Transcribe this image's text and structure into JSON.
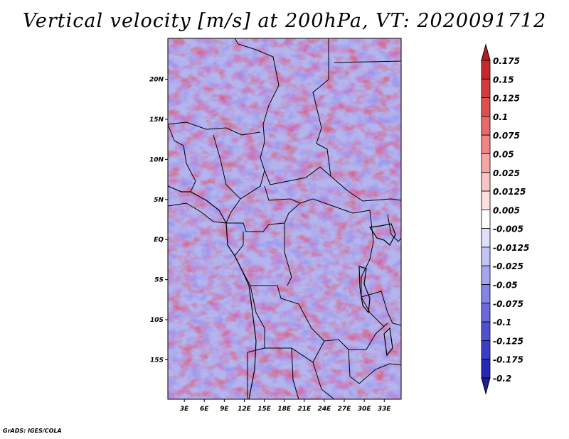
{
  "title": "Vertical velocity [m/s] at 200hPa, VT: 2020091712",
  "credit": "GrADS: IGES/COLA",
  "map": {
    "lon_range": [
      0,
      35
    ],
    "lat_range": [
      -20,
      25
    ],
    "lat_ticks": [
      {
        "value": 20,
        "label": "20N"
      },
      {
        "value": 15,
        "label": "15N"
      },
      {
        "value": 10,
        "label": "10N"
      },
      {
        "value": 5,
        "label": "5N"
      },
      {
        "value": 0,
        "label": "EQ"
      },
      {
        "value": -5,
        "label": "5S"
      },
      {
        "value": -10,
        "label": "10S"
      },
      {
        "value": -15,
        "label": "15S"
      }
    ],
    "lon_ticks": [
      {
        "value": 3,
        "label": "3E"
      },
      {
        "value": 6,
        "label": "6E"
      },
      {
        "value": 9,
        "label": "9E"
      },
      {
        "value": 12,
        "label": "12E"
      },
      {
        "value": 15,
        "label": "15E"
      },
      {
        "value": 18,
        "label": "18E"
      },
      {
        "value": 21,
        "label": "21E"
      },
      {
        "value": 24,
        "label": "24E"
      },
      {
        "value": 27,
        "label": "27E"
      },
      {
        "value": 30,
        "label": "30E"
      },
      {
        "value": 33,
        "label": "33E"
      }
    ]
  },
  "colorbar": {
    "levels": [
      "0.175",
      "0.15",
      "0.125",
      "0.1",
      "0.075",
      "0.05",
      "0.025",
      "0.0125",
      "0.005",
      "-0.005",
      "-0.0125",
      "-0.025",
      "-0.05",
      "-0.075",
      "-0.1",
      "-0.125",
      "-0.175",
      "-0.2"
    ],
    "colors": [
      "#b41e1e",
      "#c8282a",
      "#d23c3c",
      "#dc5050",
      "#e66a6a",
      "#ee8484",
      "#f4a6a6",
      "#f8c4c4",
      "#fce0e0",
      "#ffffff",
      "#e0e0fa",
      "#c4c4f4",
      "#a6a6ee",
      "#8484e6",
      "#6a6adc",
      "#5050d2",
      "#3c3cc8",
      "#2828b4",
      "#1e1e96"
    ]
  }
}
